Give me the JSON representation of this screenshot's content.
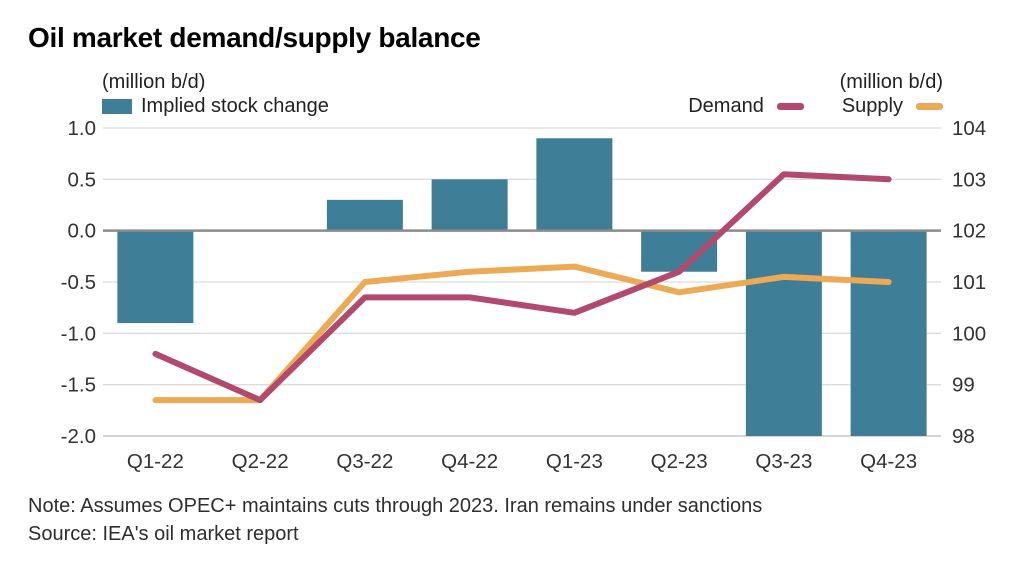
{
  "title": "Oil market demand/supply balance",
  "header": {
    "left_axis_unit": "(million b/d)",
    "right_axis_unit": "(million b/d)",
    "legend": {
      "bar_label": "Implied stock change",
      "demand_label": "Demand",
      "supply_label": "Supply"
    }
  },
  "footer": {
    "note": "Note: Assumes OPEC+ maintains cuts through 2023. Iran remains under sanctions",
    "source": "Source: IEA's oil market report"
  },
  "colors": {
    "bar": "#3e7e96",
    "demand": "#b24a6d",
    "supply": "#ecaa55",
    "gridline": "#dcdcdc",
    "baseline": "#d4d4d4",
    "zero_line": "#8c8c8c",
    "tick_text": "#333333"
  },
  "chart_data": {
    "type": "bar+line combo",
    "title": "Oil market demand/supply balance",
    "categories": [
      "Q1-22",
      "Q2-22",
      "Q3-22",
      "Q4-22",
      "Q1-23",
      "Q2-23",
      "Q3-23",
      "Q4-23"
    ],
    "series": [
      {
        "name": "Implied stock change",
        "type": "bar",
        "axis": "left",
        "values": [
          -0.9,
          0.0,
          0.3,
          0.5,
          0.9,
          -0.4,
          -2.0,
          -2.0
        ]
      },
      {
        "name": "Demand",
        "type": "line",
        "axis": "right",
        "values": [
          99.6,
          98.7,
          100.7,
          100.7,
          100.4,
          101.2,
          103.1,
          103.0
        ]
      },
      {
        "name": "Supply",
        "type": "line",
        "axis": "right",
        "values": [
          98.7,
          98.7,
          101.0,
          101.2,
          101.3,
          100.8,
          101.1,
          101.0
        ]
      }
    ],
    "left_axis": {
      "label": "(million b/d)",
      "ticks": [
        "1.0",
        "0.5",
        "0.0",
        "-0.5",
        "-1.0",
        "-1.5",
        "-2.0"
      ],
      "range": [
        -2.0,
        1.0
      ]
    },
    "right_axis": {
      "label": "(million b/d)",
      "ticks": [
        "104",
        "103",
        "102",
        "101",
        "100",
        "99",
        "98"
      ],
      "range": [
        98,
        104
      ]
    },
    "grid": true,
    "legend_position": "top"
  }
}
